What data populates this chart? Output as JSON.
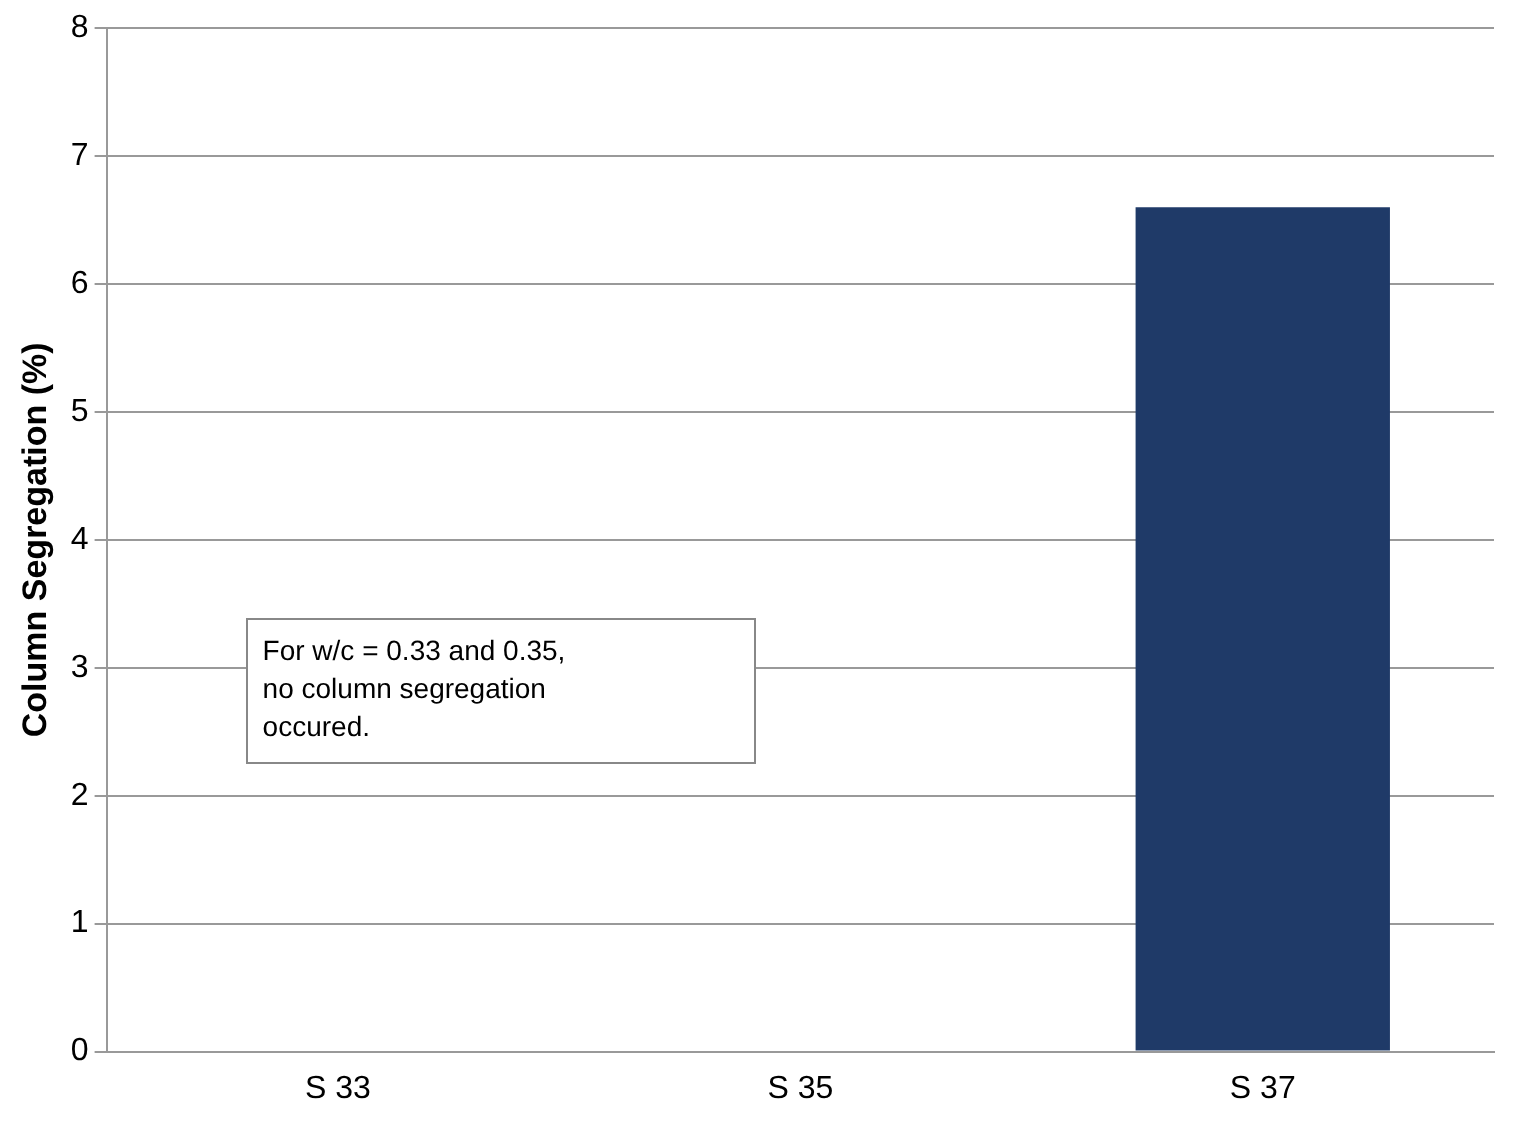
{
  "chart_data": {
    "type": "bar",
    "ylabel": "Column Segregation (%)",
    "categories": [
      "S 33",
      "S 35",
      "S 37"
    ],
    "values": [
      0,
      0,
      6.6
    ],
    "color": "#1f3a68",
    "ylim": [
      0,
      8
    ],
    "yticks": [
      0,
      1,
      2,
      3,
      4,
      5,
      6,
      7,
      8
    ],
    "grid": "y",
    "annotations": [
      "For w/c = 0.33 and 0.35,\nno column segregation\noccured."
    ]
  }
}
